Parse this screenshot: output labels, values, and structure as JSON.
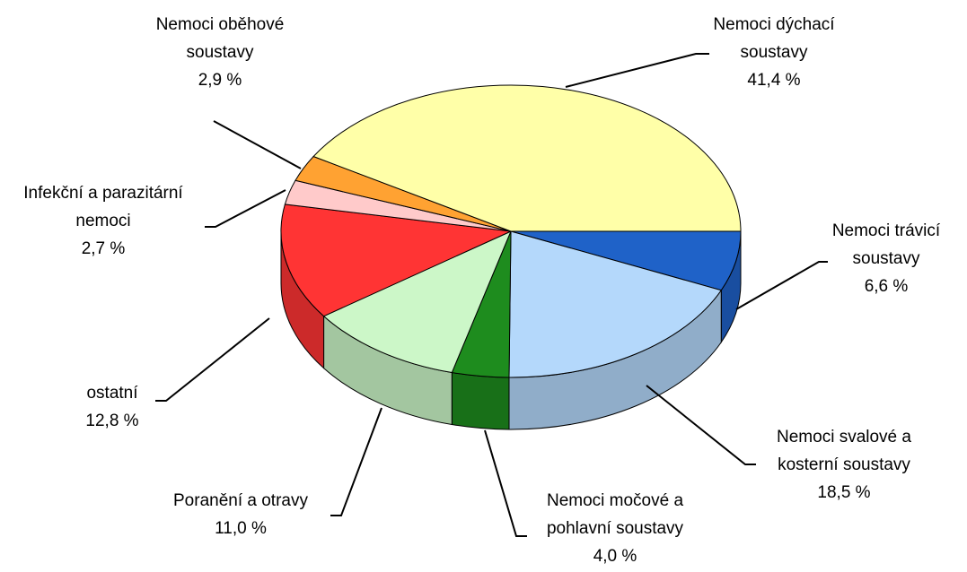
{
  "chart_data": {
    "type": "pie3d",
    "categories": [
      "Nemoci dýchací soustavy",
      "Nemoci trávicí soustavy",
      "Nemoci svalové a kosterní soustavy",
      "Nemoci močové a pohlavní soustavy",
      "Poranění a otravy",
      "ostatní",
      "Infekční a parazitární nemoci",
      "Nemoci oběhové soustavy"
    ],
    "values": [
      41.4,
      6.6,
      18.5,
      4.0,
      11.0,
      12.8,
      2.7,
      2.9
    ],
    "value_labels": [
      "41,4 %",
      "6,6 %",
      "18,5 %",
      "4,0 %",
      "11,0 %",
      "12,8 %",
      "2,7 %",
      "2,9 %"
    ],
    "colors": [
      "#ffffa8",
      "#1f62c8",
      "#b4d8fb",
      "#1e8c1e",
      "#ccf7c8",
      "#ff3434",
      "#ffcaca",
      "#ffa232"
    ]
  }
}
